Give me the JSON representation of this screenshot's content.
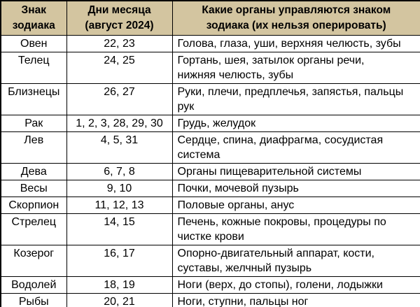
{
  "colors": {
    "header_bg": "#d3c5a0",
    "border": "#000000",
    "text": "#000000",
    "row_bg": "#ffffff"
  },
  "table": {
    "headers": [
      {
        "label": "Знак\nзодиака"
      },
      {
        "label": "Дни месяца\n(август 2024)"
      },
      {
        "label": "Какие органы управляются знаком\nзодиака (их нельзя оперировать)"
      }
    ],
    "rows": [
      {
        "sign": "Овен",
        "days": "22, 23",
        "organs": "Голова, глаза, уши, верхняя челюсть, зубы"
      },
      {
        "sign": "Телец",
        "days": "24, 25",
        "organs": "Гортань, шея, затылок органы речи,\nнижняя челюсть, зубы"
      },
      {
        "sign": "Близнецы",
        "days": "26, 27",
        "organs": "Руки, плечи, предплечья, запястья, пальцы\nрук"
      },
      {
        "sign": "Рак",
        "days": "1, 2, 3, 28, 29, 30",
        "organs": "Грудь, желудок"
      },
      {
        "sign": "Лев",
        "days": "4, 5, 31",
        "organs": "Сердце, спина, диафрагма, сосудистая\nсистема"
      },
      {
        "sign": "Дева",
        "days": "6, 7, 8",
        "organs": "Органы пищеварительной системы"
      },
      {
        "sign": "Весы",
        "days": "9, 10",
        "organs": "Почки, мочевой пузырь"
      },
      {
        "sign": "Скорпион",
        "days": "11, 12, 13",
        "organs": "Половые органы, анус"
      },
      {
        "sign": "Стрелец",
        "days": "14, 15",
        "organs": "Печень, кожные покровы, процедуры по\nчистке крови"
      },
      {
        "sign": "Козерог",
        "days": "16, 17",
        "organs": "Опорно-двигательный аппарат, кости,\nсуставы, желчный пузырь"
      },
      {
        "sign": "Водолей",
        "days": "18, 19",
        "organs": "Ноги (верх, до стопы), голени, лодыжки"
      },
      {
        "sign": "Рыбы",
        "days": "20, 21",
        "organs": "Ноги, ступни, пальцы ног"
      }
    ]
  }
}
